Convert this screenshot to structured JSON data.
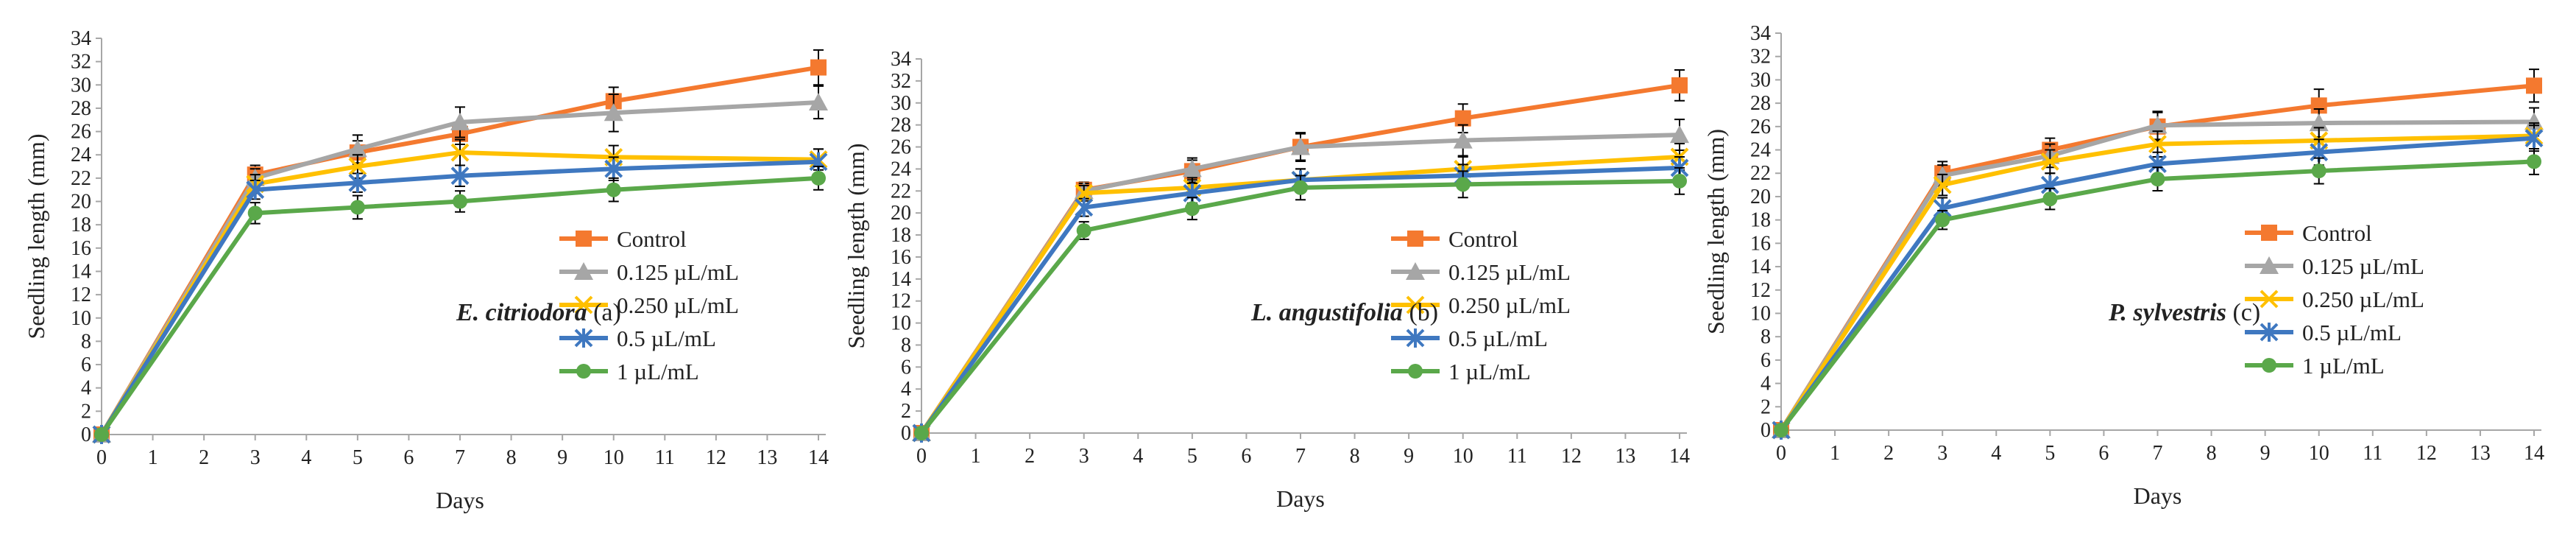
{
  "figure_title": "",
  "colors": {
    "control": "#F4792F",
    "c0125": "#A6A6A6",
    "c0250": "#FFC000",
    "c05": "#3F78C0",
    "c1": "#5AA84A",
    "axis": "#a6a6a6",
    "errorbar": "#000000"
  },
  "chart_data": [
    {
      "type": "line",
      "panel_species": "E. citriodora",
      "panel_letter": " (a)",
      "xlabel": "Days",
      "ylabel": "Seedling length (mm)",
      "ylim": [
        0,
        34
      ],
      "y_ticks": [
        0,
        2,
        4,
        6,
        8,
        10,
        12,
        14,
        16,
        18,
        20,
        22,
        24,
        26,
        28,
        30,
        32,
        34
      ],
      "x_ticks": [
        0,
        1,
        2,
        3,
        4,
        5,
        6,
        7,
        8,
        9,
        10,
        11,
        12,
        13,
        14
      ],
      "x": [
        0,
        3,
        5,
        7,
        10,
        14
      ],
      "legend_position": "right",
      "series": [
        {
          "name": "Control",
          "marker": "square",
          "values": [
            0,
            22.3,
            24.2,
            25.8,
            28.6,
            31.5
          ],
          "errors": [
            0,
            0.8,
            1.0,
            0.9,
            1.2,
            1.5
          ]
        },
        {
          "name": "0.125 µL/mL",
          "marker": "triangle",
          "values": [
            0,
            22.0,
            24.5,
            26.8,
            27.6,
            28.5
          ],
          "errors": [
            0,
            0.8,
            1.2,
            1.3,
            1.6,
            1.4
          ]
        },
        {
          "name": "0.250 µL/mL",
          "marker": "x",
          "values": [
            0,
            21.5,
            23.0,
            24.2,
            23.8,
            23.6
          ],
          "errors": [
            0,
            0.8,
            1.0,
            1.1,
            1.0,
            0.9
          ]
        },
        {
          "name": "0.5 µL/mL",
          "marker": "asterisk",
          "values": [
            0,
            21.0,
            21.6,
            22.2,
            22.8,
            23.4
          ],
          "errors": [
            0,
            0.8,
            0.8,
            0.9,
            1.0,
            1.1
          ]
        },
        {
          "name": "1 µL/mL",
          "marker": "circle",
          "values": [
            0,
            19.0,
            19.5,
            20.0,
            21.0,
            22.0
          ],
          "errors": [
            0,
            0.9,
            1.0,
            0.9,
            1.0,
            1.0
          ]
        }
      ]
    },
    {
      "type": "line",
      "panel_species": "L. angustifolia",
      "panel_letter": " (b)",
      "xlabel": "Days",
      "ylabel": "Seedling length (mm)",
      "ylim": [
        0,
        34
      ],
      "y_ticks": [
        0,
        2,
        4,
        6,
        8,
        10,
        12,
        14,
        16,
        18,
        20,
        22,
        24,
        26,
        28,
        30,
        32,
        34
      ],
      "x_ticks": [
        0,
        1,
        2,
        3,
        4,
        5,
        6,
        7,
        8,
        9,
        10,
        11,
        12,
        13,
        14
      ],
      "x": [
        0,
        3,
        5,
        7,
        10,
        14
      ],
      "legend_position": "right",
      "series": [
        {
          "name": "Control",
          "marker": "square",
          "values": [
            0,
            22.1,
            23.8,
            26.0,
            28.6,
            31.6
          ],
          "errors": [
            0,
            0.7,
            1.0,
            1.2,
            1.3,
            1.4
          ]
        },
        {
          "name": "0.125 µL/mL",
          "marker": "triangle",
          "values": [
            0,
            22.0,
            24.0,
            26.0,
            26.6,
            27.1
          ],
          "errors": [
            0,
            0.7,
            1.0,
            1.3,
            1.4,
            1.4
          ]
        },
        {
          "name": "0.250 µL/mL",
          "marker": "x",
          "values": [
            0,
            21.8,
            22.3,
            23.0,
            24.0,
            25.1
          ],
          "errors": [
            0,
            0.7,
            0.9,
            1.0,
            1.1,
            1.2
          ]
        },
        {
          "name": "0.5 µL/mL",
          "marker": "asterisk",
          "values": [
            0,
            20.5,
            21.8,
            23.0,
            23.4,
            24.1
          ],
          "errors": [
            0,
            0.8,
            0.9,
            1.0,
            1.0,
            1.0
          ]
        },
        {
          "name": "1 µL/mL",
          "marker": "circle",
          "values": [
            0,
            18.4,
            20.4,
            22.3,
            22.6,
            22.9
          ],
          "errors": [
            0,
            0.8,
            1.0,
            1.1,
            1.2,
            1.2
          ]
        }
      ]
    },
    {
      "type": "line",
      "panel_species": "P. sylvestris",
      "panel_letter": " (c)",
      "xlabel": "Days",
      "ylabel": "Seedling length (mm)",
      "ylim": [
        0,
        34
      ],
      "y_ticks": [
        0,
        2,
        4,
        6,
        8,
        10,
        12,
        14,
        16,
        18,
        20,
        22,
        24,
        26,
        28,
        30,
        32,
        34
      ],
      "x_ticks": [
        0,
        1,
        2,
        3,
        4,
        5,
        6,
        7,
        8,
        9,
        10,
        11,
        12,
        13,
        14
      ],
      "x": [
        0,
        3,
        5,
        7,
        10,
        14
      ],
      "legend_position": "right",
      "series": [
        {
          "name": "Control",
          "marker": "square",
          "values": [
            0,
            22.0,
            24.0,
            26.0,
            27.8,
            29.5
          ],
          "errors": [
            0,
            1.0,
            1.0,
            1.2,
            1.4,
            1.4
          ]
        },
        {
          "name": "0.125 µL/mL",
          "marker": "triangle",
          "values": [
            0,
            21.8,
            23.5,
            26.1,
            26.3,
            26.4
          ],
          "errors": [
            0,
            0.9,
            1.0,
            1.2,
            1.2,
            1.2
          ]
        },
        {
          "name": "0.250 µL/mL",
          "marker": "x",
          "values": [
            0,
            21.0,
            23.0,
            24.5,
            24.8,
            25.2
          ],
          "errors": [
            0,
            0.9,
            1.0,
            1.1,
            1.1,
            1.1
          ]
        },
        {
          "name": "0.5 µL/mL",
          "marker": "asterisk",
          "values": [
            0,
            19.0,
            21.0,
            22.8,
            23.8,
            25.0
          ],
          "errors": [
            0,
            0.9,
            1.0,
            1.0,
            1.1,
            1.1
          ]
        },
        {
          "name": "1 µL/mL",
          "marker": "circle",
          "values": [
            0,
            18.0,
            19.8,
            21.5,
            22.2,
            23.0
          ],
          "errors": [
            0,
            0.8,
            0.9,
            1.0,
            1.1,
            1.1
          ]
        }
      ]
    }
  ]
}
